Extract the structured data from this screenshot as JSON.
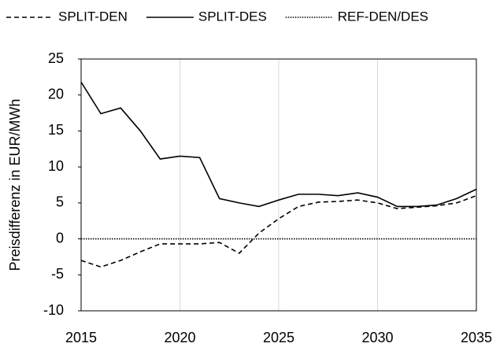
{
  "chart_data": {
    "type": "line",
    "y_label": "Preisdifferenz in EUR/MWh",
    "x": [
      2015,
      2016,
      2017,
      2018,
      2019,
      2020,
      2021,
      2022,
      2023,
      2024,
      2025,
      2026,
      2027,
      2028,
      2029,
      2030,
      2031,
      2032,
      2033,
      2034,
      2035
    ],
    "series": [
      {
        "name": "SPLIT-DEN",
        "color": "#000000",
        "dash": "dashed",
        "values": [
          -3.0,
          -3.9,
          -3.0,
          -1.8,
          -0.7,
          -0.7,
          -0.7,
          -0.5,
          -2.0,
          0.8,
          2.8,
          4.5,
          5.1,
          5.2,
          5.4,
          5.0,
          4.2,
          4.4,
          4.6,
          5.0,
          6.0
        ]
      },
      {
        "name": "SPLIT-DES",
        "color": "#000000",
        "dash": "solid",
        "values": [
          21.8,
          17.4,
          18.2,
          15.0,
          11.1,
          11.5,
          11.3,
          5.6,
          5.0,
          4.5,
          5.4,
          6.2,
          6.2,
          6.0,
          6.4,
          5.8,
          4.5,
          4.5,
          4.7,
          5.6,
          6.9
        ]
      },
      {
        "name": "REF-DEN/DES",
        "color": "#000000",
        "dash": "dotted",
        "values": [
          0,
          0,
          0,
          0,
          0,
          0,
          0,
          0,
          0,
          0,
          0,
          0,
          0,
          0,
          0,
          0,
          0,
          0,
          0,
          0,
          0
        ]
      }
    ],
    "xlim": [
      2015,
      2035
    ],
    "xticks": [
      2015,
      2020,
      2025,
      2030,
      2035
    ],
    "ylim": [
      -10,
      25
    ],
    "yticks": [
      -10,
      -5,
      0,
      5,
      10,
      15,
      20,
      25
    ],
    "grid": "x",
    "legend": "top"
  }
}
